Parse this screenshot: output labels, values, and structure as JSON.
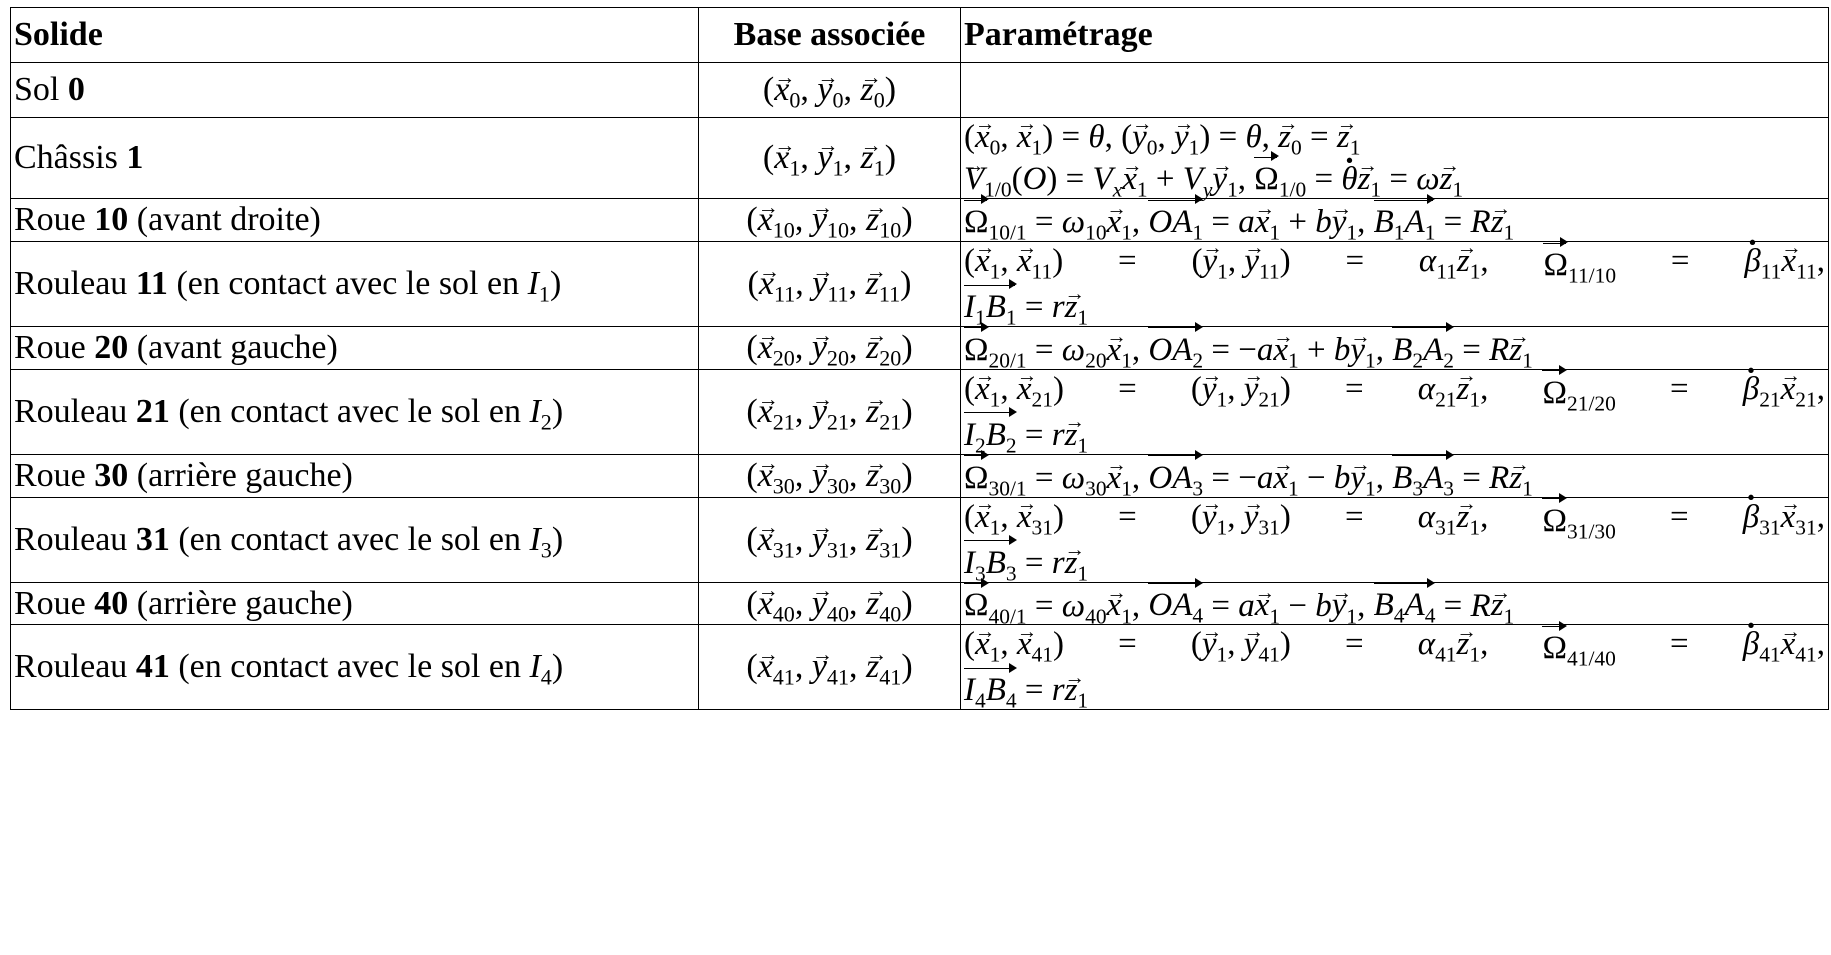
{
  "headers": [
    "Solide",
    "Base associée",
    "Paramétrage"
  ],
  "rows": [
    {
      "name": "Sol",
      "num": "0",
      "desc": "",
      "base_sub": [
        "0",
        "0",
        "0"
      ],
      "param_type": "none"
    },
    {
      "name": "Châssis",
      "num": "1",
      "desc": "",
      "base_sub": [
        "1",
        "1",
        "1"
      ],
      "param_type": "chassis"
    },
    {
      "name": "Roue",
      "num": "10",
      "desc": "(avant droite)",
      "base_sub": [
        "10",
        "10",
        "10"
      ],
      "param_type": "roue",
      "omega_index": "10/1",
      "omega_coef": "10",
      "point": "A",
      "point_index": "1",
      "OA_rhs": "ax₁ + by₁"
    },
    {
      "name": "Rouleau",
      "num": "11",
      "desc": "(en contact avec le sol en",
      "contact": "I",
      "contact_index": "1",
      "base_sub": [
        "11",
        "11",
        "11"
      ],
      "param_type": "rouleau"
    },
    {
      "name": "Roue",
      "num": "20",
      "desc": "(avant gauche)",
      "base_sub": [
        "20",
        "20",
        "20"
      ],
      "param_type": "roue"
    },
    {
      "name": "Rouleau",
      "num": "21",
      "desc": "(en contact avec le sol en",
      "contact": "I",
      "contact_index": "2",
      "base_sub": [
        "21",
        "21",
        "21"
      ],
      "param_type": "rouleau"
    },
    {
      "name": "Roue",
      "num": "30",
      "desc": "(arrière gauche)",
      "base_sub": [
        "30",
        "30",
        "30"
      ],
      "param_type": "roue"
    },
    {
      "name": "Rouleau",
      "num": "31",
      "desc": "(en contact avec le sol en",
      "contact": "I",
      "contact_index": "3",
      "base_sub": [
        "31",
        "31",
        "31"
      ],
      "param_type": "rouleau"
    },
    {
      "name": "Roue",
      "num": "40",
      "desc": "(arrière gauche)",
      "base_sub": [
        "40",
        "40",
        "40"
      ],
      "param_type": "roue"
    },
    {
      "name": "Rouleau",
      "num": "41",
      "desc": "(en contact avec le sol en",
      "contact": "I",
      "contact_index": "4",
      "base_sub": [
        "41",
        "41",
        "41"
      ],
      "param_type": "rouleau"
    }
  ],
  "chassis_params": {
    "line1": "(x₀, x₁) = θ, (y₀, y₁) = θ, z₀ = z₁",
    "line2": "V1/0(O) = Vx x₁ + Vy y₁, Ω1/0 = θ̇ z₁ = ω z₁"
  },
  "roue_params": [
    {
      "omega": "10/1",
      "w": "10",
      "k": "1",
      "sign_a": "",
      "sign_b": "+"
    },
    {
      "omega": "20/1",
      "w": "20",
      "k": "2",
      "sign_a": "−",
      "sign_b": "+"
    },
    {
      "omega": "30/1",
      "w": "30",
      "k": "3",
      "sign_a": "−",
      "sign_b": "−"
    },
    {
      "omega": "40/1",
      "w": "40",
      "k": "4",
      "sign_a": "",
      "sign_b": "−"
    }
  ],
  "rouleau_params": [
    {
      "a": "11",
      "rel": "11/10",
      "k": "1"
    },
    {
      "a": "21",
      "rel": "21/20",
      "k": "2"
    },
    {
      "a": "31",
      "rel": "31/30",
      "k": "3"
    },
    {
      "a": "41",
      "rel": "41/40",
      "k": "4"
    }
  ]
}
